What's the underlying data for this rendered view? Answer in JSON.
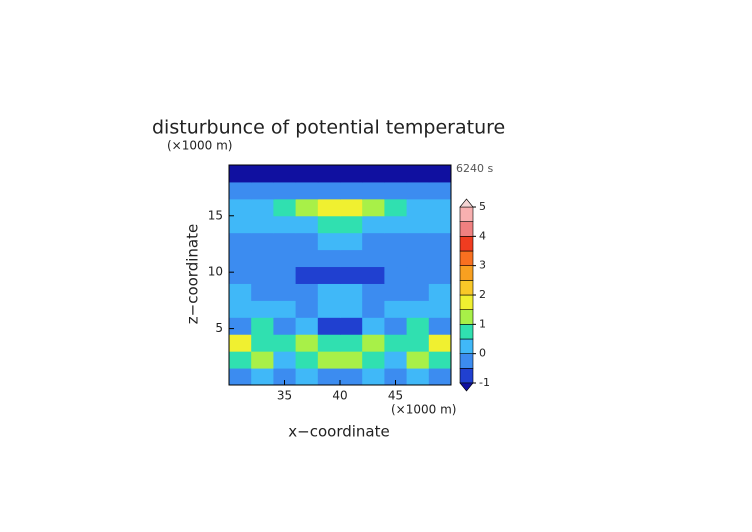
{
  "chart_data": {
    "type": "heatmap",
    "title": "disturbunce of potential temperature",
    "time_label": "6240 s",
    "x_label": "x−coordinate",
    "y_label": "z−coordinate",
    "x_unit": "(×1000 m)",
    "y_unit": "(×1000 m)",
    "xlim": [
      30,
      50
    ],
    "ylim": [
      0,
      19.5
    ],
    "xticks": [
      35,
      40,
      45
    ],
    "yticks": [
      5,
      10,
      15
    ],
    "x": [
      31,
      33,
      35,
      37,
      39,
      41,
      43,
      45,
      47,
      49
    ],
    "y": [
      0.75,
      2.25,
      3.75,
      5.25,
      6.75,
      8.25,
      9.75,
      11.25,
      12.75,
      14.25,
      15.75,
      17.25,
      18.75
    ],
    "values": [
      [
        -0.3,
        0.2,
        -0.4,
        0.1,
        -0.2,
        -0.2,
        0.1,
        -0.4,
        0.2,
        -0.3
      ],
      [
        0.6,
        1.2,
        0.4,
        0.9,
        1.3,
        1.3,
        0.9,
        0.4,
        1.2,
        0.6
      ],
      [
        1.5,
        0.8,
        0.5,
        1.0,
        0.6,
        0.6,
        1.0,
        0.5,
        0.8,
        1.5
      ],
      [
        -0.3,
        0.6,
        -0.5,
        0.2,
        -0.6,
        -0.6,
        0.2,
        -0.5,
        0.6,
        -0.3
      ],
      [
        0.3,
        0.1,
        0.0,
        -0.2,
        0.1,
        0.1,
        -0.2,
        0.0,
        0.1,
        0.3
      ],
      [
        0.1,
        -0.2,
        -0.1,
        -0.1,
        0.2,
        0.2,
        -0.1,
        -0.1,
        -0.2,
        0.1
      ],
      [
        -0.3,
        -0.2,
        -0.5,
        -0.7,
        -0.6,
        -0.6,
        -0.7,
        -0.5,
        -0.2,
        -0.3
      ],
      [
        -0.2,
        -0.3,
        -0.3,
        -0.2,
        -0.1,
        -0.1,
        -0.2,
        -0.3,
        -0.3,
        -0.2
      ],
      [
        -0.2,
        -0.2,
        -0.1,
        -0.1,
        0.0,
        0.0,
        -0.1,
        -0.1,
        -0.2,
        -0.2
      ],
      [
        0.0,
        0.1,
        0.2,
        0.4,
        0.5,
        0.5,
        0.4,
        0.2,
        0.1,
        0.0
      ],
      [
        0.1,
        0.3,
        0.6,
        1.2,
        1.6,
        1.6,
        1.2,
        0.6,
        0.3,
        0.1
      ],
      [
        -0.4,
        -0.3,
        -0.3,
        -0.3,
        -0.3,
        -0.3,
        -0.3,
        -0.3,
        -0.3,
        -0.4
      ],
      [
        -1.2,
        -1.1,
        -1.1,
        -1.1,
        -1.1,
        -1.1,
        -1.1,
        -1.1,
        -1.1,
        -1.2
      ]
    ],
    "colorbar": {
      "levels": [
        -1,
        -0.5,
        0,
        0.5,
        1,
        1.5,
        2,
        2.5,
        3,
        3.5,
        4,
        4.5,
        5
      ],
      "colors": [
        "#2040d0",
        "#3c8cf0",
        "#40b8f8",
        "#30e0b0",
        "#a8f048",
        "#f0f030",
        "#f8c828",
        "#f8a020",
        "#f87020",
        "#f03c20",
        "#f08080",
        "#f8b0b0"
      ],
      "under_color": "#1010a0",
      "over_color": "#f4d4d4",
      "ticks": [
        -1,
        0,
        1,
        2,
        3,
        4,
        5
      ]
    }
  }
}
